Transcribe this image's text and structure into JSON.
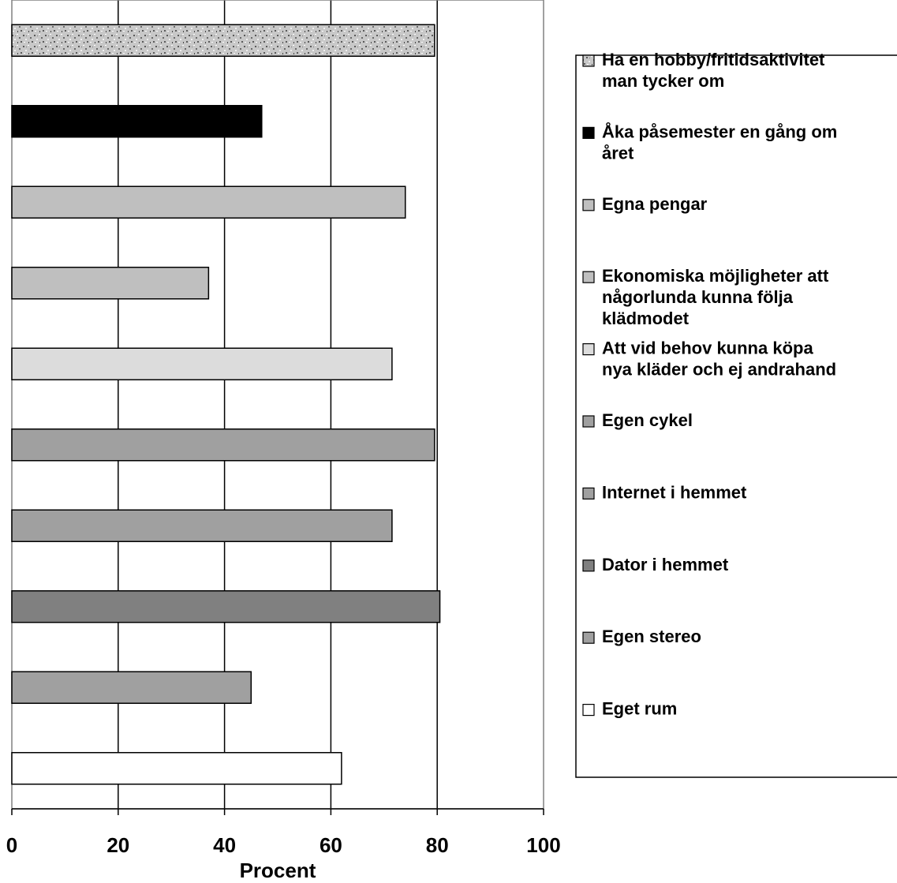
{
  "chart_data": {
    "type": "bar",
    "orientation": "horizontal",
    "title": "",
    "xlabel": "Procent",
    "ylabel": "",
    "xlim": [
      0,
      100
    ],
    "xticks": [
      0,
      20,
      40,
      60,
      80,
      100
    ],
    "grid": "vertical",
    "legend_position": "right",
    "categories": [
      "Ha en hobby/fritidsaktivitet man tycker om",
      "Åka påsemester en gång om året",
      "Egna pengar",
      "Ekonomiska möjligheter att någorlunda kunna följa klädmodet",
      "Att vid behov kunna köpa nya kläder och ej andrahand",
      "Egen cykel",
      "Internet i hemmet",
      "Dator i hemmet",
      "Egen stereo",
      "Eget rum"
    ],
    "values": [
      79.5,
      47,
      74,
      37,
      71.5,
      79.5,
      71.5,
      80.5,
      45,
      62
    ],
    "colors": [
      "#c4c4c4",
      "#000000",
      "#bfbfbf",
      "#bfbfbf",
      "#dcdcdc",
      "#a0a0a0",
      "#a0a0a0",
      "#808080",
      "#a0a0a0",
      "#ffffff"
    ],
    "patterns": [
      "speckled",
      "solid",
      "solid",
      "solid",
      "solid",
      "solid",
      "solid",
      "solid",
      "solid",
      "solid"
    ],
    "legend": [
      [
        "Ha en hobby/fritidsaktivitet",
        "man tycker om"
      ],
      [
        "Åka påsemester en gång om",
        "året"
      ],
      [
        "Egna pengar"
      ],
      [
        "Ekonomiska möjligheter att",
        "någorlunda kunna följa",
        "klädmodet"
      ],
      [
        "Att vid behov kunna köpa",
        "nya kläder och ej andrahand"
      ],
      [
        "Egen cykel"
      ],
      [
        "Internet i hemmet"
      ],
      [
        "Dator i hemmet"
      ],
      [
        "Egen stereo"
      ],
      [
        "Eget rum"
      ]
    ]
  }
}
